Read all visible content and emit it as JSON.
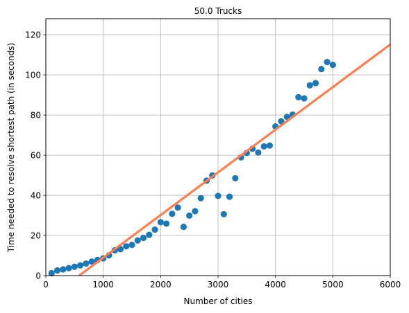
{
  "chart_data": {
    "type": "scatter",
    "title": "50.0 Trucks",
    "xlabel": "Number of cities",
    "ylabel": "Time needed to resolve shortest path (in seconds)",
    "xlim": [
      0,
      6000
    ],
    "ylim": [
      0,
      128
    ],
    "xticks": [
      0,
      1000,
      2000,
      3000,
      4000,
      5000,
      6000
    ],
    "yticks": [
      0,
      20,
      40,
      60,
      80,
      100,
      120
    ],
    "grid": true,
    "colors": {
      "points": "#1f77b4",
      "fit": "#ff7f50"
    },
    "series": [
      {
        "kind": "scatter",
        "points": [
          [
            100,
            1.2
          ],
          [
            200,
            2.6
          ],
          [
            300,
            3.1
          ],
          [
            400,
            3.7
          ],
          [
            500,
            4.4
          ],
          [
            600,
            5.1
          ],
          [
            700,
            6.0
          ],
          [
            800,
            7.0
          ],
          [
            900,
            7.8
          ],
          [
            1000,
            8.6
          ],
          [
            1100,
            10.1
          ],
          [
            1200,
            12.6
          ],
          [
            1300,
            13.2
          ],
          [
            1400,
            14.6
          ],
          [
            1500,
            15.3
          ],
          [
            1600,
            17.5
          ],
          [
            1700,
            18.8
          ],
          [
            1800,
            20.3
          ],
          [
            1900,
            22.9
          ],
          [
            2000,
            26.6
          ],
          [
            2100,
            25.9
          ],
          [
            2200,
            30.8
          ],
          [
            2300,
            33.9
          ],
          [
            2400,
            24.3
          ],
          [
            2500,
            29.9
          ],
          [
            2600,
            32.1
          ],
          [
            2700,
            38.6
          ],
          [
            2800,
            47.3
          ],
          [
            2900,
            49.9
          ],
          [
            3000,
            39.7
          ],
          [
            3100,
            30.6
          ],
          [
            3200,
            39.3
          ],
          [
            3300,
            48.5
          ],
          [
            3400,
            58.9
          ],
          [
            3500,
            61.1
          ],
          [
            3600,
            63.2
          ],
          [
            3700,
            61.3
          ],
          [
            3800,
            64.4
          ],
          [
            3900,
            64.8
          ],
          [
            4000,
            74.3
          ],
          [
            4100,
            76.9
          ],
          [
            4200,
            79.1
          ],
          [
            4300,
            80.2
          ],
          [
            4400,
            88.9
          ],
          [
            4500,
            88.3
          ],
          [
            4600,
            94.8
          ],
          [
            4700,
            95.9
          ],
          [
            4800,
            102.9
          ],
          [
            4900,
            106.4
          ],
          [
            5000,
            105.0
          ]
        ]
      },
      {
        "kind": "line",
        "points": [
          [
            580,
            0
          ],
          [
            6000,
            115.2
          ]
        ]
      }
    ]
  }
}
